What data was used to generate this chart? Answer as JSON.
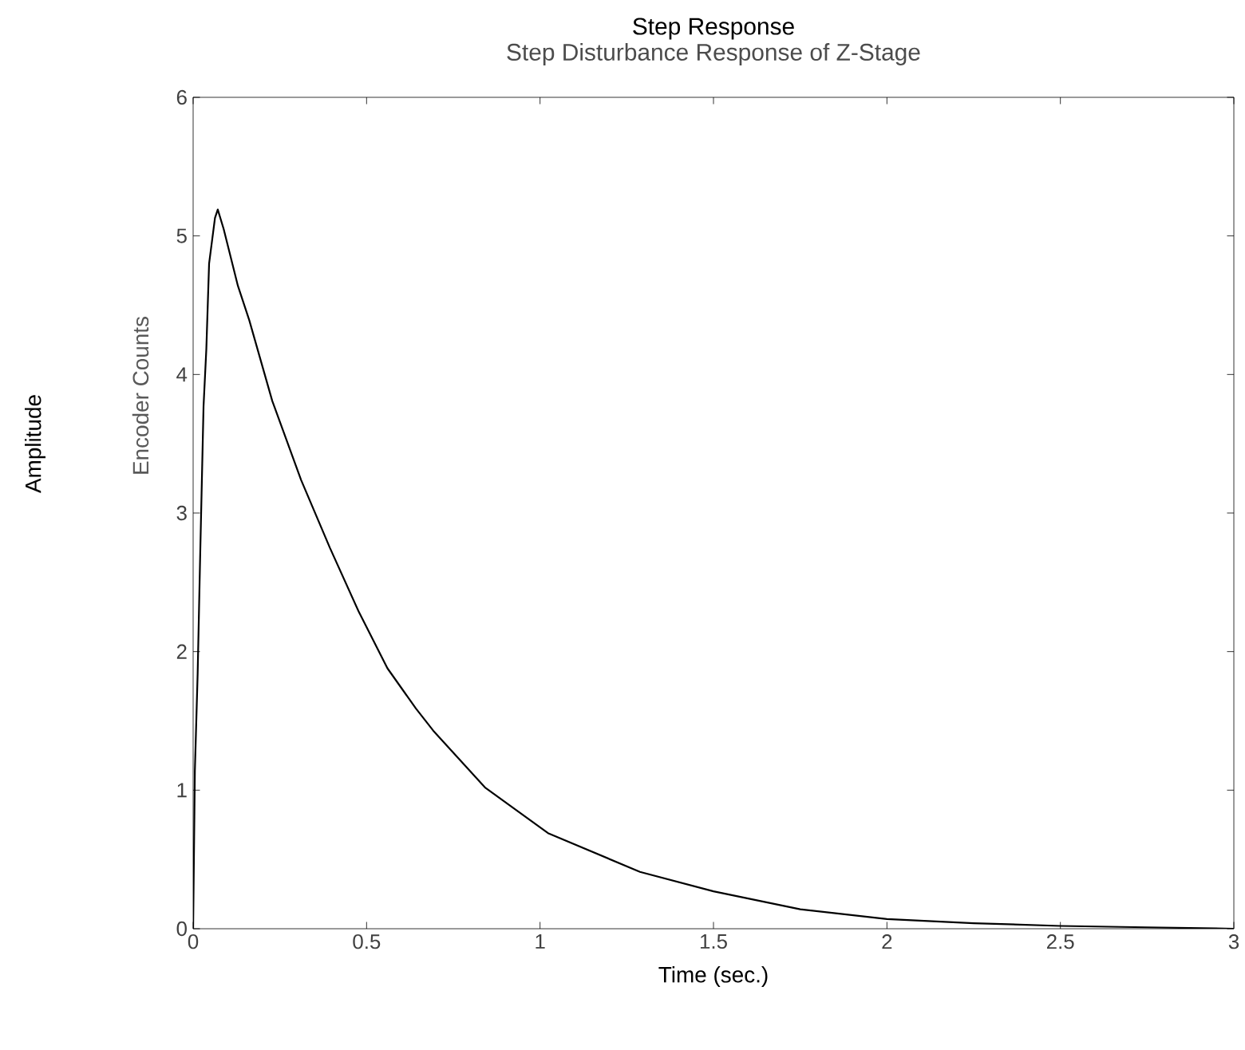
{
  "chart_data": {
    "type": "line",
    "title": "Step Response",
    "subtitle": "Step Disturbance Response of Z-Stage",
    "xlabel": "Time (sec.)",
    "ylabel": "Encoder Counts",
    "annotations": [
      "Amplitude"
    ],
    "xlim": [
      0,
      3
    ],
    "ylim": [
      0,
      6
    ],
    "xticks": [
      0,
      0.5,
      1,
      1.5,
      2,
      2.5,
      3
    ],
    "yticks": [
      0,
      1,
      2,
      3,
      4,
      5,
      6
    ],
    "marker": "none",
    "line_style": "solid",
    "series": [
      {
        "color": "#000000",
        "x": [
          0,
          0.005,
          0.013,
          0.02,
          0.03,
          0.038,
          0.046,
          0.063,
          0.071,
          0.088,
          0.129,
          0.162,
          0.228,
          0.311,
          0.394,
          0.477,
          0.56,
          0.642,
          0.692,
          0.841,
          1.023,
          1.288,
          1.5,
          1.75,
          2,
          2.25,
          2.5,
          2.75,
          3
        ],
        "values": [
          0,
          1.14,
          1.84,
          2.66,
          3.77,
          4.18,
          4.8,
          5.13,
          5.19,
          5.05,
          4.64,
          4.39,
          3.81,
          3.24,
          2.75,
          2.29,
          1.88,
          1.59,
          1.43,
          1.02,
          0.69,
          0.41,
          0.27,
          0.14,
          0.07,
          0.04,
          0.02,
          0.01,
          0
        ]
      }
    ]
  }
}
